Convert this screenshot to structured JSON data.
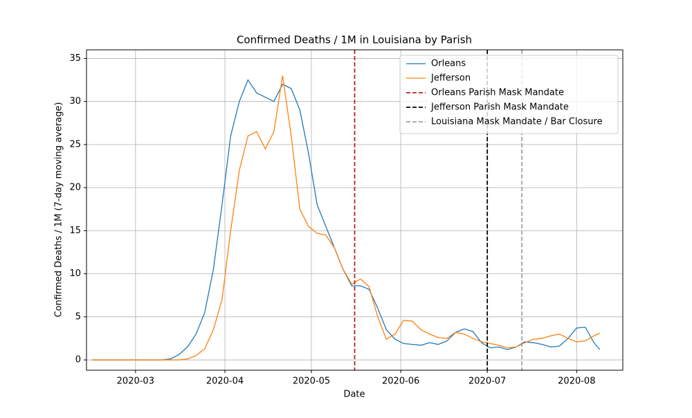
{
  "chart_data": {
    "type": "line",
    "title": "Confirmed Deaths / 1M in Louisiana by Parish",
    "xlabel": "Date",
    "ylabel": "Confirmed Deaths / 1M (7-day moving average)",
    "x": [
      "2020-02-15",
      "2020-02-18",
      "2020-02-21",
      "2020-02-24",
      "2020-02-27",
      "2020-03-01",
      "2020-03-04",
      "2020-03-07",
      "2020-03-10",
      "2020-03-13",
      "2020-03-16",
      "2020-03-19",
      "2020-03-22",
      "2020-03-25",
      "2020-03-28",
      "2020-03-31",
      "2020-04-03",
      "2020-04-06",
      "2020-04-09",
      "2020-04-12",
      "2020-04-15",
      "2020-04-18",
      "2020-04-21",
      "2020-04-24",
      "2020-04-27",
      "2020-04-30",
      "2020-05-03",
      "2020-05-06",
      "2020-05-09",
      "2020-05-12",
      "2020-05-15",
      "2020-05-18",
      "2020-05-21",
      "2020-05-24",
      "2020-05-27",
      "2020-05-30",
      "2020-06-02",
      "2020-06-05",
      "2020-06-08",
      "2020-06-11",
      "2020-06-14",
      "2020-06-17",
      "2020-06-20",
      "2020-06-23",
      "2020-06-26",
      "2020-06-29",
      "2020-07-02",
      "2020-07-05",
      "2020-07-08",
      "2020-07-11",
      "2020-07-14",
      "2020-07-17",
      "2020-07-20",
      "2020-07-23",
      "2020-07-26",
      "2020-07-29",
      "2020-08-01",
      "2020-08-04",
      "2020-08-07",
      "2020-08-09"
    ],
    "series": [
      {
        "name": "Orleans",
        "color": "#1f77b4",
        "values": [
          0,
          0,
          0,
          0,
          0,
          0,
          0,
          0,
          0,
          0.1,
          0.6,
          1.5,
          3,
          5.5,
          10.5,
          18,
          26,
          30,
          32.5,
          31,
          30.5,
          30,
          32,
          31.5,
          29,
          24,
          18,
          15.5,
          13,
          10.5,
          8.6,
          8.6,
          8.2,
          6,
          3.5,
          2.4,
          1.9,
          1.8,
          1.7,
          2.0,
          1.8,
          2.2,
          3.2,
          3.6,
          3.3,
          2.0,
          1.4,
          1.5,
          1.2,
          1.5,
          2.1,
          2.0,
          1.8,
          1.5,
          1.6,
          2.5,
          3.7,
          3.8,
          2.0,
          1.2
        ]
      },
      {
        "name": "Jefferson",
        "color": "#ff7f0e",
        "values": [
          0,
          0,
          0,
          0,
          0,
          0,
          0,
          0,
          0,
          0,
          0,
          0.1,
          0.5,
          1.3,
          3.5,
          7,
          15,
          22,
          26,
          26.5,
          24.5,
          26.5,
          33,
          26,
          17.5,
          15.5,
          14.7,
          14.5,
          13,
          10.5,
          8.8,
          9.4,
          8.5,
          5,
          2.4,
          3,
          4.6,
          4.5,
          3.5,
          3,
          2.6,
          2.5,
          3.2,
          3,
          2.5,
          2.1,
          1.9,
          1.7,
          1.4,
          1.5,
          2.0,
          2.4,
          2.5,
          2.8,
          3.0,
          2.5,
          2.1,
          2.2,
          2.8,
          3.1
        ]
      }
    ],
    "vlines": [
      {
        "name": "Orleans Parish Mask Mandate",
        "x": "2020-05-16",
        "color": "#b22222"
      },
      {
        "name": "Jefferson Parish Mask Mandate",
        "x": "2020-07-01",
        "color": "#000000"
      },
      {
        "name": "Louisiana Mask Mandate / Bar Closure",
        "x": "2020-07-13",
        "color": "#a0a0a0"
      }
    ],
    "xlim": [
      "2020-02-13",
      "2020-08-17"
    ],
    "xticks": [
      {
        "value": "2020-03-01",
        "label": "2020-03"
      },
      {
        "value": "2020-04-01",
        "label": "2020-04"
      },
      {
        "value": "2020-05-01",
        "label": "2020-05"
      },
      {
        "value": "2020-06-01",
        "label": "2020-06"
      },
      {
        "value": "2020-07-01",
        "label": "2020-07"
      },
      {
        "value": "2020-08-01",
        "label": "2020-08"
      }
    ],
    "ylim": [
      -1.2,
      36
    ],
    "yticks": [
      0,
      5,
      10,
      15,
      20,
      25,
      30,
      35
    ],
    "grid": true,
    "legend": "upper right"
  }
}
